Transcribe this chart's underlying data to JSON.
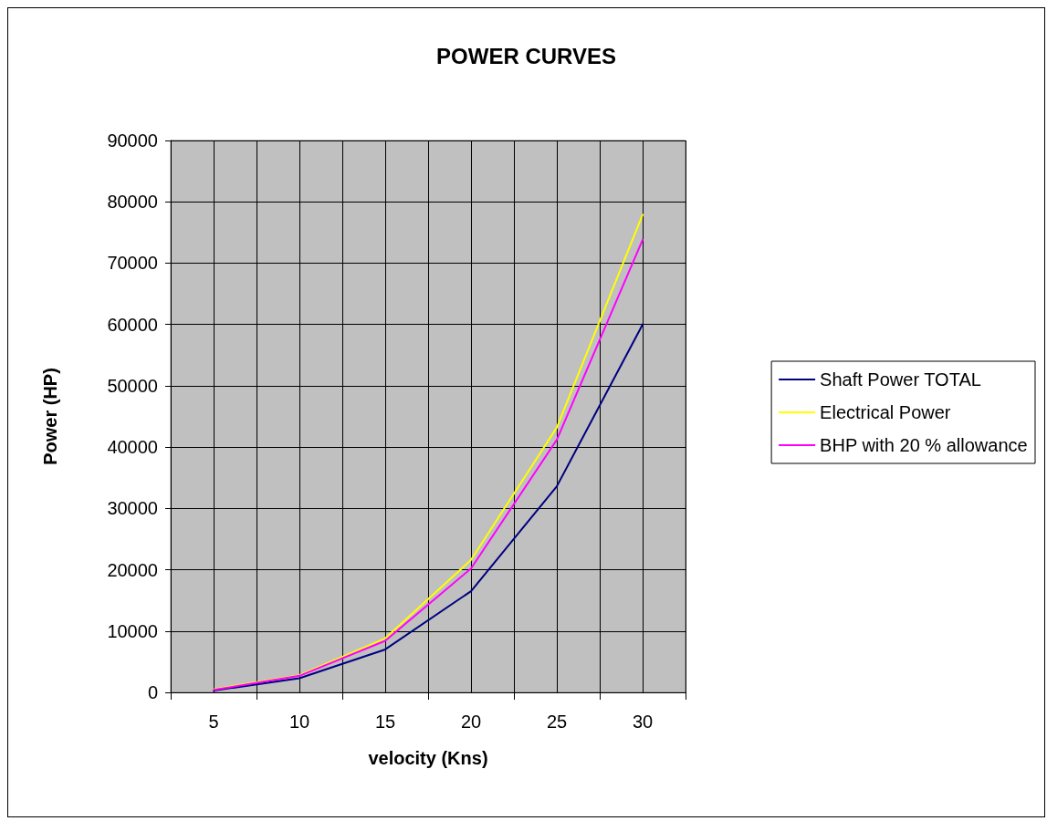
{
  "chart_data": {
    "type": "line",
    "title": "POWER CURVES",
    "xlabel": "velocity (Kns)",
    "ylabel": "Power (HP)",
    "categories": [
      "5",
      "10",
      "15",
      "20",
      "25",
      "30"
    ],
    "series": [
      {
        "name": "Shaft Power TOTAL",
        "color": "#000080",
        "values": [
          300,
          2300,
          7000,
          16500,
          33600,
          60000
        ]
      },
      {
        "name": "Electrical Power",
        "color": "#ffff00",
        "values": [
          500,
          2800,
          8800,
          21600,
          43200,
          77900
        ]
      },
      {
        "name": "BHP with 20 % allowance",
        "color": "#ff00ff",
        "values": [
          400,
          2700,
          8400,
          20200,
          41200,
          73800
        ]
      }
    ],
    "ylim": [
      0,
      90000
    ],
    "yticks": [
      0,
      10000,
      20000,
      30000,
      40000,
      50000,
      60000,
      70000,
      80000,
      90000
    ],
    "grid": true,
    "legend": "right",
    "marker": "none",
    "line_style": "solid"
  }
}
